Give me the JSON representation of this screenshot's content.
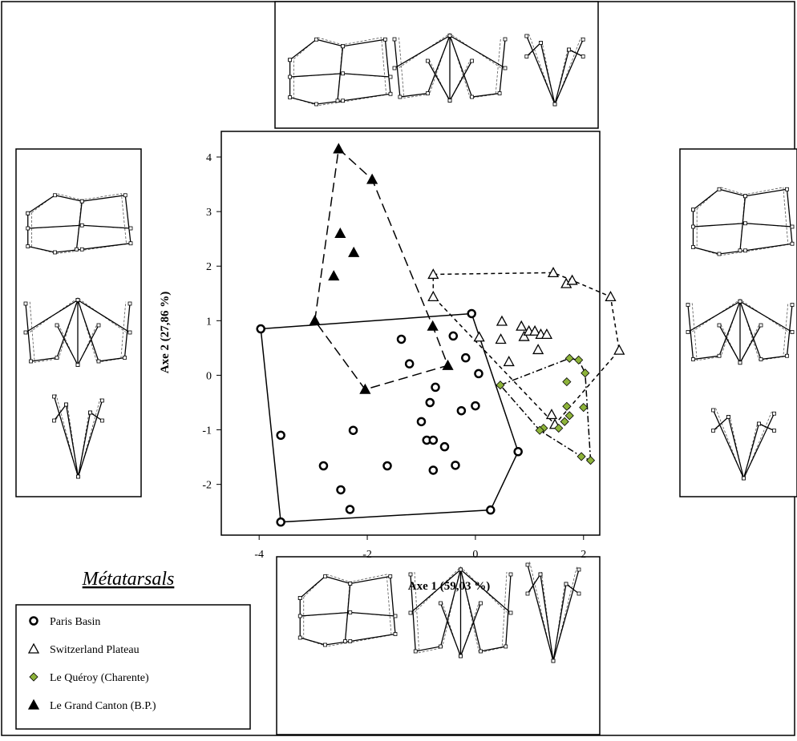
{
  "chart_data": {
    "type": "scatter",
    "title": "Métatarsals",
    "x_label": "Axe 1 (59,03 %)",
    "y_label": "Axe 2 (27,86 %)",
    "xlim": [
      -4.7,
      2.3
    ],
    "xticks": [
      -4,
      -2,
      0,
      2
    ],
    "ylim": [
      -2.93,
      4.47
    ],
    "yticks": [
      -2,
      -1,
      0,
      1,
      2,
      3,
      4
    ],
    "series": [
      {
        "name": "Paris Basin",
        "marker": "circle",
        "color": "#000000",
        "line_style": "solid",
        "x": [
          -3.97,
          -3.6,
          -3.6,
          -2.81,
          -2.49,
          -2.32,
          -2.26,
          -1.63,
          -1.37,
          -1.22,
          -0.41,
          -0.74,
          -0.84,
          -1.0,
          -0.9,
          -0.78,
          -0.78,
          -0.57,
          -0.37,
          -0.26,
          -0.18,
          -0.07,
          0.06,
          0.0,
          0.28,
          0.79
        ],
        "y": [
          0.85,
          -2.69,
          -1.1,
          -1.66,
          -2.1,
          -2.46,
          -1.01,
          -1.66,
          0.66,
          0.21,
          0.72,
          -0.22,
          -0.5,
          -0.85,
          -1.19,
          -1.19,
          -1.74,
          -1.31,
          -1.65,
          -0.65,
          0.32,
          1.13,
          0.03,
          -0.56,
          -2.47,
          -1.4
        ]
      },
      {
        "name": "Switzerland Plateau",
        "marker": "triangle-open",
        "color": "#000000",
        "line_style": "dashed",
        "x": [
          -0.78,
          -0.78,
          1.44,
          1.68,
          1.79,
          2.5,
          2.66,
          0.07,
          0.49,
          0.47,
          0.85,
          0.9,
          0.99,
          1.1,
          1.21,
          1.32,
          1.16,
          0.62,
          1.41,
          1.47
        ],
        "y": [
          1.85,
          1.44,
          1.88,
          1.68,
          1.74,
          1.44,
          0.46,
          0.7,
          0.99,
          0.66,
          0.9,
          0.71,
          0.81,
          0.81,
          0.75,
          0.75,
          0.47,
          0.25,
          -0.72,
          -0.9
        ]
      },
      {
        "name": "Le Quéroy (Charente)",
        "marker": "diamond",
        "color": "#8db33a",
        "line_style": "dash-dot",
        "x": [
          0.46,
          1.74,
          1.91,
          1.69,
          2.03,
          1.69,
          1.74,
          1.65,
          1.54,
          1.26,
          1.19,
          2.0,
          1.96,
          2.13
        ],
        "y": [
          -0.18,
          0.31,
          0.28,
          -0.12,
          0.04,
          -0.57,
          -0.74,
          -0.85,
          -0.97,
          -0.97,
          -1.01,
          -0.59,
          -1.49,
          -1.56
        ]
      },
      {
        "name": "Le Grand Canton (B.P.)",
        "marker": "triangle",
        "color": "#000000",
        "line_style": "long-dash",
        "x": [
          -2.53,
          -1.91,
          -2.5,
          -2.25,
          -2.62,
          -2.97,
          -2.04,
          -0.79,
          -0.51
        ],
        "y": [
          4.15,
          3.59,
          2.6,
          2.25,
          1.82,
          1.0,
          -0.26,
          0.9,
          0.18
        ]
      }
    ]
  }
}
